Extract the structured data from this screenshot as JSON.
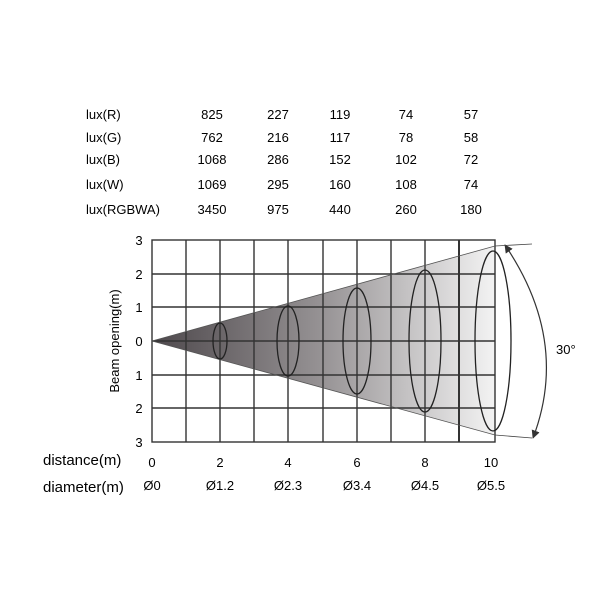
{
  "lux_table": {
    "rows": [
      {
        "label": "lux(R)",
        "values": [
          "825",
          "227",
          "119",
          "74",
          "57"
        ]
      },
      {
        "label": "lux(G)",
        "values": [
          "762",
          "216",
          "117",
          "78",
          "58"
        ]
      },
      {
        "label": "lux(B)",
        "values": [
          "1068",
          "286",
          "152",
          "102",
          "72"
        ]
      },
      {
        "label": "lux(W)",
        "values": [
          "1069",
          "295",
          "160",
          "108",
          "74"
        ]
      },
      {
        "label": "lux(RGBWA)",
        "values": [
          "3450",
          "975",
          "440",
          "260",
          "180"
        ]
      }
    ]
  },
  "beam": {
    "y_axis_label": "Beam opening(m)",
    "y_tick_labels": [
      "3",
      "2",
      "1",
      "0",
      "1",
      "2",
      "3"
    ],
    "angle_label": "30°",
    "distance_label": "distance(m)",
    "distance_values": [
      "0",
      "2",
      "4",
      "6",
      "8",
      "10"
    ],
    "diameter_label": "diameter(m)",
    "diameter_values": [
      "Ø0",
      "Ø1.2",
      "Ø2.3",
      "Ø3.4",
      "Ø4.5",
      "Ø5.5"
    ]
  },
  "colors": {
    "grid": "#333333",
    "beam_dark": "#4a4448",
    "beam_light": "#f0f0f0",
    "text": "#222222"
  }
}
